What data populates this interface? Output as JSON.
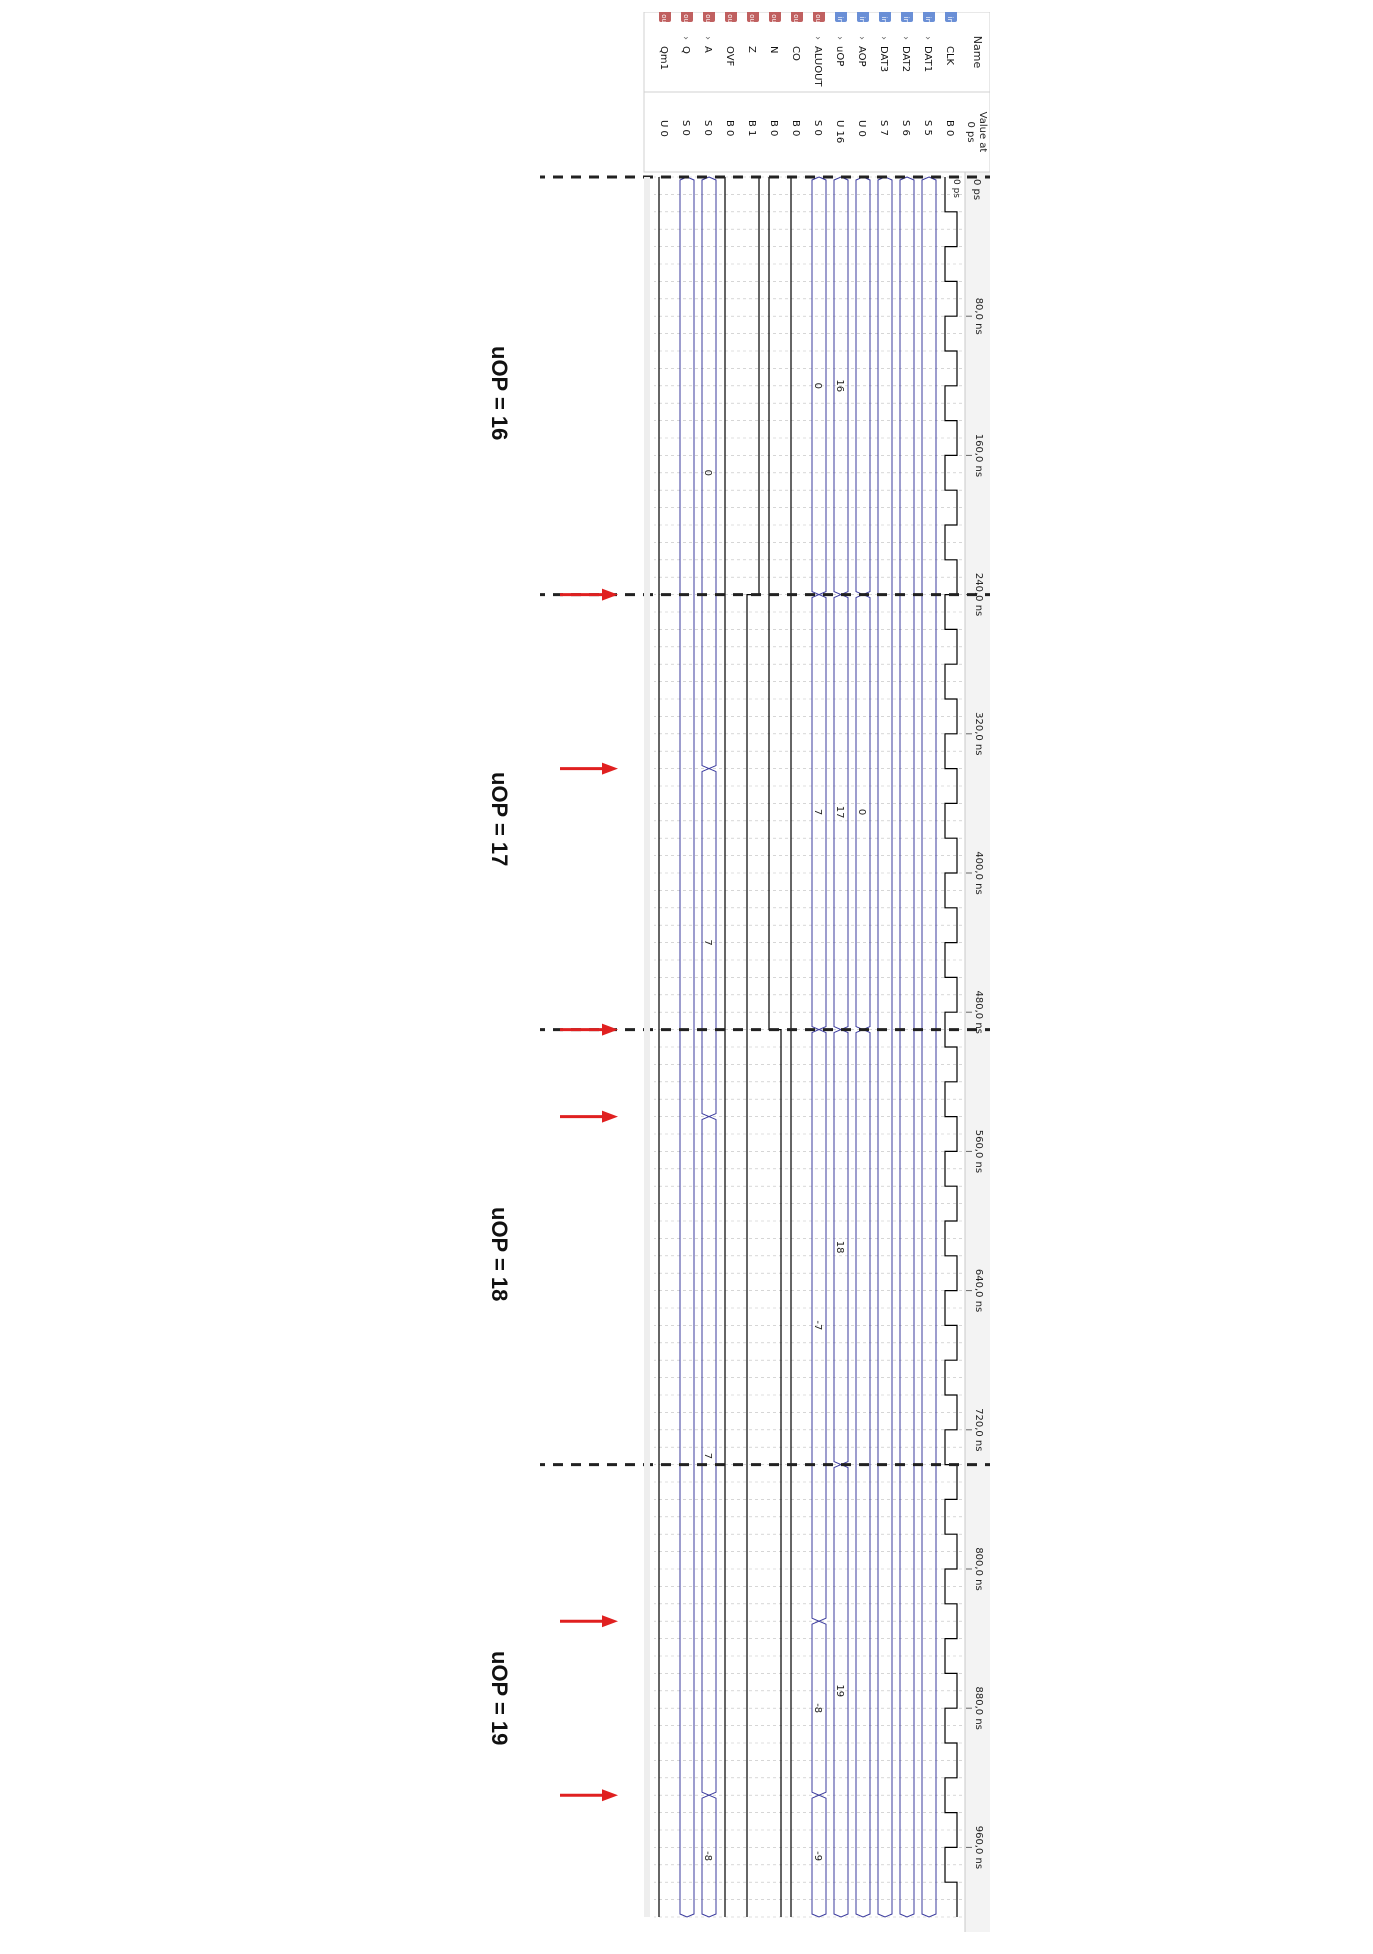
{
  "header": {
    "name_col": "Name",
    "value_col_line1": "Value at",
    "value_col_line2": "0 ps",
    "start_time": "0 ps",
    "cursor_label": "0 ps"
  },
  "signals": [
    {
      "name": "CLK",
      "type": "in",
      "expandable": false,
      "value": "B 0"
    },
    {
      "name": "DAT1",
      "type": "in",
      "expandable": true,
      "value": "S 5"
    },
    {
      "name": "DAT2",
      "type": "in",
      "expandable": true,
      "value": "S 6"
    },
    {
      "name": "DAT3",
      "type": "in",
      "expandable": true,
      "value": "S 7"
    },
    {
      "name": "AOP",
      "type": "in",
      "expandable": true,
      "value": "U 0"
    },
    {
      "name": "uOP",
      "type": "in",
      "expandable": true,
      "value": "U 16"
    },
    {
      "name": "ALUOUT",
      "type": "out",
      "expandable": true,
      "value": "S 0"
    },
    {
      "name": "CO",
      "type": "out",
      "expandable": false,
      "value": "B 0"
    },
    {
      "name": "N",
      "type": "out",
      "expandable": false,
      "value": "B 0"
    },
    {
      "name": "Z",
      "type": "out",
      "expandable": false,
      "value": "B 1"
    },
    {
      "name": "OVF",
      "type": "out",
      "expandable": false,
      "value": "B 0"
    },
    {
      "name": "A",
      "type": "out",
      "expandable": true,
      "value": "S 0"
    },
    {
      "name": "Q",
      "type": "out",
      "expandable": true,
      "value": "S 0"
    },
    {
      "name": "Qm1",
      "type": "out",
      "expandable": false,
      "value": "U 0"
    }
  ],
  "timeline": {
    "ticks": [
      "80,0 ns",
      "160,0 ns",
      "240,0 ns",
      "320,0 ns",
      "400,0 ns",
      "480,0 ns",
      "560,0 ns",
      "640,0 ns",
      "720,0 ns",
      "800,0 ns",
      "880,0 ns",
      "960,0 ns"
    ],
    "tick_values_ns": [
      80,
      160,
      240,
      320,
      400,
      480,
      560,
      640,
      720,
      800,
      880,
      960
    ],
    "end_ns": 1000,
    "clock_period_ns": 40
  },
  "bus_labels": {
    "uOP": [
      "16",
      "17",
      "18",
      "19"
    ],
    "AOP": [
      "0"
    ],
    "ALUOUT": [
      "0",
      "7",
      "-7",
      "-8",
      "-9"
    ],
    "A": [
      "0",
      "7",
      "7",
      "-8"
    ],
    "DAT": [
      "5",
      "6",
      "7"
    ]
  },
  "annotations": {
    "uop_labels": [
      "uOP = 16",
      "uOP = 17",
      "uOP = 18",
      "uOP = 19"
    ],
    "section_boundaries_ns": [
      0,
      240,
      490,
      740
    ],
    "arrow_times_ns": [
      240,
      340,
      490,
      540,
      830,
      930
    ]
  },
  "colors": {
    "bus": "#3b3b9e",
    "grid": "#bfbfbf",
    "signal": "#000000",
    "arrow": "#e02020",
    "dash": "#222222",
    "header_bg": "#f3f3f3"
  }
}
